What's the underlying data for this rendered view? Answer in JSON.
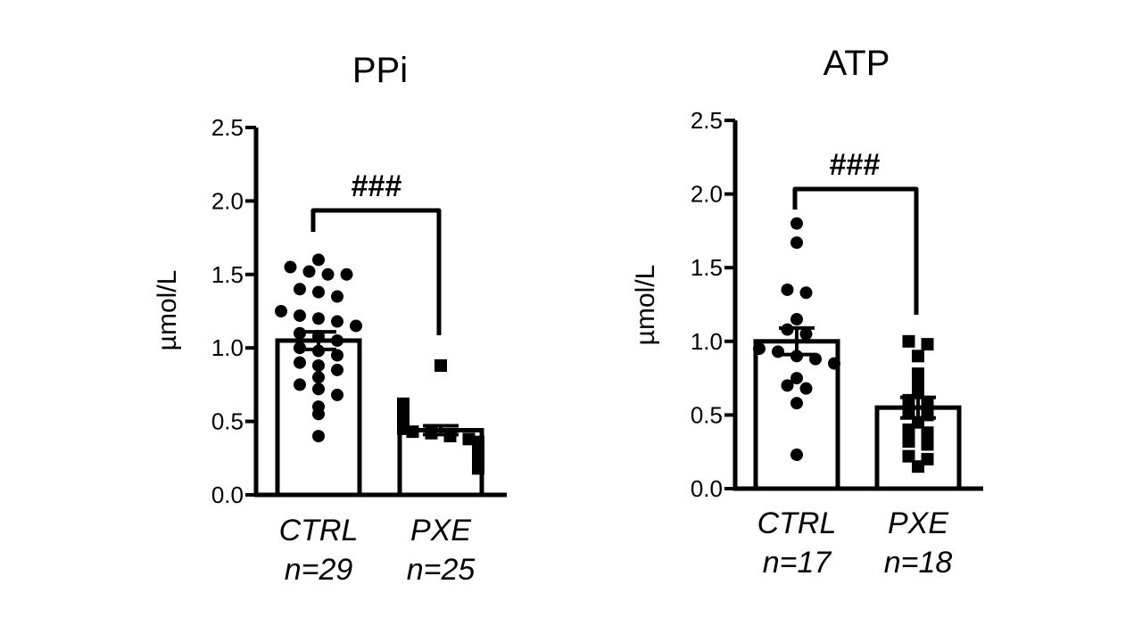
{
  "chart_data": [
    {
      "type": "bar",
      "title": "PPi",
      "ylabel": "µmol/L",
      "ylim": [
        0,
        2.5
      ],
      "yticks": [
        "0.0",
        "0.5",
        "1.0",
        "1.5",
        "2.0",
        "2.5"
      ],
      "categories": [
        "CTRL",
        "PXE"
      ],
      "n_labels": [
        "n=29",
        "n=25"
      ],
      "values": [
        1.05,
        0.44
      ],
      "sem": [
        0.06,
        0.03
      ],
      "markers": [
        "circle",
        "square"
      ],
      "significance": "###",
      "points": [
        [
          1.6,
          1.55,
          1.52,
          1.5,
          1.5,
          1.4,
          1.38,
          1.35,
          1.25,
          1.22,
          1.2,
          1.18,
          1.15,
          1.1,
          1.08,
          1.05,
          1.0,
          0.98,
          0.95,
          0.9,
          0.88,
          0.85,
          0.8,
          0.75,
          0.72,
          0.68,
          0.6,
          0.55,
          0.4
        ],
        [
          0.88,
          0.62,
          0.6,
          0.58,
          0.55,
          0.53,
          0.52,
          0.5,
          0.48,
          0.46,
          0.45,
          0.43,
          0.42,
          0.4,
          0.38,
          0.36,
          0.35,
          0.33,
          0.32,
          0.3,
          0.28,
          0.25,
          0.23,
          0.2,
          0.18
        ]
      ]
    },
    {
      "type": "bar",
      "title": "ATP",
      "ylabel": "µmol/L",
      "ylim": [
        0,
        2.5
      ],
      "yticks": [
        "0.0",
        "0.5",
        "1.0",
        "1.5",
        "2.0",
        "2.5"
      ],
      "categories": [
        "CTRL",
        "PXE"
      ],
      "n_labels": [
        "n=17",
        "n=18"
      ],
      "values": [
        1.0,
        0.55
      ],
      "sem": [
        0.09,
        0.07
      ],
      "markers": [
        "circle",
        "square"
      ],
      "significance": "###",
      "points": [
        [
          1.8,
          1.67,
          1.35,
          1.33,
          1.15,
          1.08,
          1.05,
          0.95,
          0.93,
          0.9,
          0.88,
          0.85,
          0.75,
          0.7,
          0.68,
          0.58,
          0.23
        ],
        [
          1.0,
          0.98,
          0.9,
          0.78,
          0.7,
          0.65,
          0.6,
          0.58,
          0.52,
          0.5,
          0.45,
          0.4,
          0.38,
          0.32,
          0.3,
          0.22,
          0.2,
          0.15
        ]
      ]
    }
  ]
}
